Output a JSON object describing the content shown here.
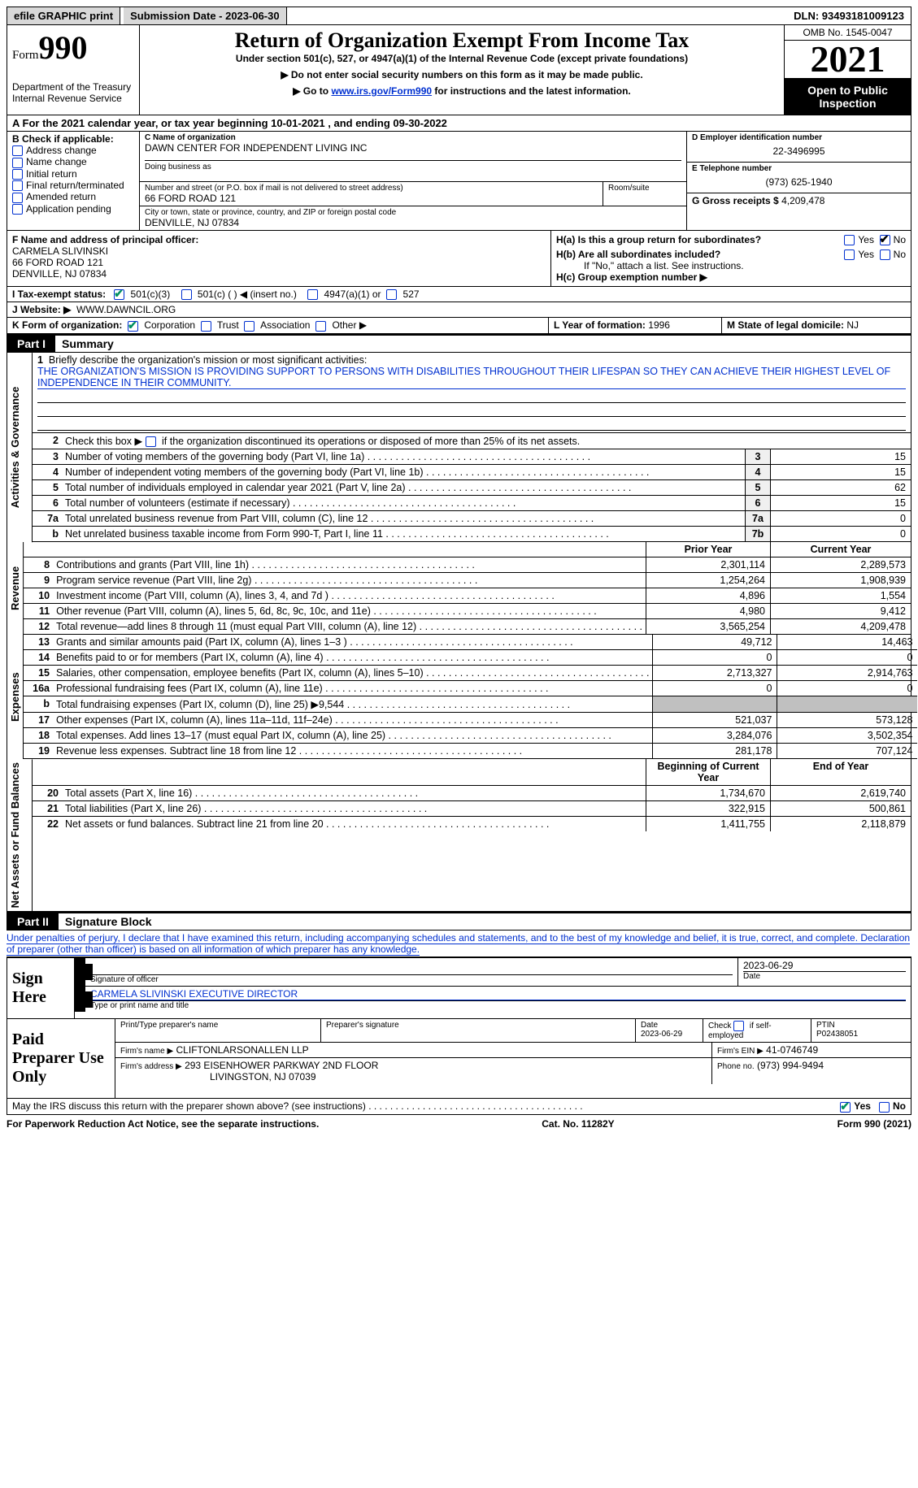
{
  "topbar": {
    "efile": "efile GRAPHIC print",
    "submission": "Submission Date - 2023-06-30",
    "dln": "DLN: 93493181009123"
  },
  "header": {
    "form_word": "Form",
    "form_num": "990",
    "dept1": "Department of the Treasury",
    "dept2": "Internal Revenue Service",
    "title": "Return of Organization Exempt From Income Tax",
    "sub1": "Under section 501(c), 527, or 4947(a)(1) of the Internal Revenue Code (except private foundations)",
    "sub2": "▶ Do not enter social security numbers on this form as it may be made public.",
    "sub3a": "▶ Go to ",
    "sub3_link": "www.irs.gov/Form990",
    "sub3b": " for instructions and the latest information.",
    "omb": "OMB No. 1545-0047",
    "year": "2021",
    "open": "Open to Public Inspection"
  },
  "period": "A For the 2021 calendar year, or tax year beginning 10-01-2021    , and ending 09-30-2022",
  "B": {
    "label": "B Check if applicable:",
    "opts": [
      "Address change",
      "Name change",
      "Initial return",
      "Final return/terminated",
      "Amended return",
      "Application pending"
    ]
  },
  "C": {
    "name_label": "C Name of organization",
    "name": "DAWN CENTER FOR INDEPENDENT LIVING INC",
    "dba_label": "Doing business as",
    "street_label": "Number and street (or P.O. box if mail is not delivered to street address)",
    "room_label": "Room/suite",
    "street": "66 FORD ROAD 121",
    "city_label": "City or town, state or province, country, and ZIP or foreign postal code",
    "city": "DENVILLE, NJ  07834"
  },
  "D": {
    "label": "D Employer identification number",
    "val": "22-3496995"
  },
  "E": {
    "label": "E Telephone number",
    "val": "(973) 625-1940"
  },
  "G": {
    "label": "G Gross receipts $",
    "val": "4,209,478"
  },
  "F": {
    "label": "F Name and address of principal officer:",
    "name": "CARMELA SLIVINSKI",
    "street": "66 FORD ROAD 121",
    "city": "DENVILLE, NJ  07834"
  },
  "H": {
    "a": "H(a)  Is this a group return for subordinates?",
    "b": "H(b)  Are all subordinates included?",
    "b2": "If \"No,\" attach a list. See instructions.",
    "c": "H(c)  Group exemption number ▶",
    "yes": "Yes",
    "no": "No"
  },
  "I": {
    "label": "I   Tax-exempt status:",
    "o1": "501(c)(3)",
    "o2": "501(c) (  ) ◀ (insert no.)",
    "o3": "4947(a)(1) or",
    "o4": "527"
  },
  "J": {
    "label": "J   Website: ▶",
    "val": "WWW.DAWNCIL.ORG"
  },
  "K": {
    "label": "K Form of organization:",
    "o1": "Corporation",
    "o2": "Trust",
    "o3": "Association",
    "o4": "Other ▶"
  },
  "L": {
    "label": "L Year of formation:",
    "val": "1996"
  },
  "M": {
    "label": "M State of legal domicile:",
    "val": "NJ"
  },
  "parts": {
    "p1_hdr": "Part I",
    "p1_ttl": "Summary",
    "p2_hdr": "Part II",
    "p2_ttl": "Signature Block"
  },
  "brief": {
    "num": "1",
    "label": "Briefly describe the organization's mission or most significant activities:",
    "text": "THE ORGANIZATION'S MISSION IS PROVIDING SUPPORT TO PERSONS WITH DISABILITIES THROUGHOUT THEIR LIFESPAN SO THEY CAN ACHIEVE THEIR HIGHEST LEVEL OF INDEPENDENCE IN THEIR COMMUNITY."
  },
  "line2": {
    "num": "2",
    "text": "Check this box ▶      if the organization discontinued its operations or disposed of more than 25% of its net assets."
  },
  "vtabs": {
    "ag": "Activities & Governance",
    "rev": "Revenue",
    "exp": "Expenses",
    "na": "Net Assets or Fund Balances"
  },
  "col_hdr": {
    "prior": "Prior Year",
    "curr": "Current Year",
    "beg": "Beginning of Current Year",
    "end": "End of Year"
  },
  "lines_gov": [
    {
      "n": "3",
      "d": "Number of voting members of the governing body (Part VI, line 1a)",
      "box": "3",
      "v": "15"
    },
    {
      "n": "4",
      "d": "Number of independent voting members of the governing body (Part VI, line 1b)",
      "box": "4",
      "v": "15"
    },
    {
      "n": "5",
      "d": "Total number of individuals employed in calendar year 2021 (Part V, line 2a)",
      "box": "5",
      "v": "62"
    },
    {
      "n": "6",
      "d": "Total number of volunteers (estimate if necessary)",
      "box": "6",
      "v": "15"
    },
    {
      "n": "7a",
      "d": "Total unrelated business revenue from Part VIII, column (C), line 12",
      "box": "7a",
      "v": "0"
    },
    {
      "n": "b",
      "d": "Net unrelated business taxable income from Form 990-T, Part I, line 11",
      "box": "7b",
      "v": "0"
    }
  ],
  "lines_rev": [
    {
      "n": "8",
      "d": "Contributions and grants (Part VIII, line 1h)",
      "p": "2,301,114",
      "c": "2,289,573"
    },
    {
      "n": "9",
      "d": "Program service revenue (Part VIII, line 2g)",
      "p": "1,254,264",
      "c": "1,908,939"
    },
    {
      "n": "10",
      "d": "Investment income (Part VIII, column (A), lines 3, 4, and 7d )",
      "p": "4,896",
      "c": "1,554"
    },
    {
      "n": "11",
      "d": "Other revenue (Part VIII, column (A), lines 5, 6d, 8c, 9c, 10c, and 11e)",
      "p": "4,980",
      "c": "9,412"
    },
    {
      "n": "12",
      "d": "Total revenue—add lines 8 through 11 (must equal Part VIII, column (A), line 12)",
      "p": "3,565,254",
      "c": "4,209,478"
    }
  ],
  "lines_exp": [
    {
      "n": "13",
      "d": "Grants and similar amounts paid (Part IX, column (A), lines 1–3 )",
      "p": "49,712",
      "c": "14,463"
    },
    {
      "n": "14",
      "d": "Benefits paid to or for members (Part IX, column (A), line 4)",
      "p": "0",
      "c": "0"
    },
    {
      "n": "15",
      "d": "Salaries, other compensation, employee benefits (Part IX, column (A), lines 5–10)",
      "p": "2,713,327",
      "c": "2,914,763"
    },
    {
      "n": "16a",
      "d": "Professional fundraising fees (Part IX, column (A), line 11e)",
      "p": "0",
      "c": "0"
    },
    {
      "n": "b",
      "d": "Total fundraising expenses (Part IX, column (D), line 25) ▶9,544",
      "p": "",
      "c": "",
      "shade": true
    },
    {
      "n": "17",
      "d": "Other expenses (Part IX, column (A), lines 11a–11d, 11f–24e)",
      "p": "521,037",
      "c": "573,128"
    },
    {
      "n": "18",
      "d": "Total expenses. Add lines 13–17 (must equal Part IX, column (A), line 25)",
      "p": "3,284,076",
      "c": "3,502,354"
    },
    {
      "n": "19",
      "d": "Revenue less expenses. Subtract line 18 from line 12",
      "p": "281,178",
      "c": "707,124"
    }
  ],
  "lines_na": [
    {
      "n": "20",
      "d": "Total assets (Part X, line 16)",
      "p": "1,734,670",
      "c": "2,619,740"
    },
    {
      "n": "21",
      "d": "Total liabilities (Part X, line 26)",
      "p": "322,915",
      "c": "500,861"
    },
    {
      "n": "22",
      "d": "Net assets or fund balances. Subtract line 21 from line 20",
      "p": "1,411,755",
      "c": "2,118,879"
    }
  ],
  "penalty": "Under penalties of perjury, I declare that I have examined this return, including accompanying schedules and statements, and to the best of my knowledge and belief, it is true, correct, and complete. Declaration of preparer (other than officer) is based on all information of which preparer has any knowledge.",
  "sign": {
    "lab": "Sign Here",
    "sig_label": "Signature of officer",
    "date": "2023-06-29",
    "date_label": "Date",
    "name": "CARMELA SLIVINSKI  EXECUTIVE DIRECTOR",
    "name_label": "Type or print name and title"
  },
  "paid": {
    "lab": "Paid Preparer Use Only",
    "h_name": "Print/Type preparer's name",
    "h_sig": "Preparer's signature",
    "h_date": "Date",
    "date": "2023-06-29",
    "h_check": "Check         if self-employed",
    "h_ptin": "PTIN",
    "ptin": "P02438051",
    "firm_label": "Firm's name     ▶",
    "firm": "CLIFTONLARSONALLEN LLP",
    "ein_label": "Firm's EIN ▶",
    "ein": "41-0746749",
    "addr_label": "Firm's address ▶",
    "addr1": "293 EISENHOWER PARKWAY 2ND FLOOR",
    "addr2": "LIVINGSTON, NJ  07039",
    "phone_label": "Phone no.",
    "phone": "(973) 994-9494"
  },
  "discuss": {
    "q": "May the IRS discuss this return with the preparer shown above? (see instructions)",
    "yes": "Yes",
    "no": "No"
  },
  "footer": {
    "l": "For Paperwork Reduction Act Notice, see the separate instructions.",
    "m": "Cat. No. 11282Y",
    "r": "Form 990 (2021)"
  },
  "colors": {
    "link": "#0030d0",
    "check_green": "#009060",
    "black": "#000000",
    "shade": "#c0c0c0"
  }
}
